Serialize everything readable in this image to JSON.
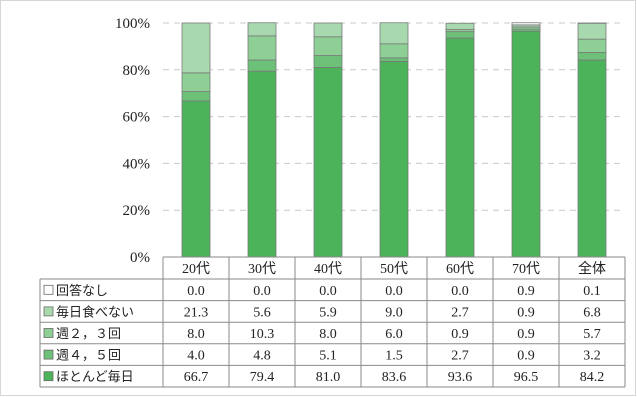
{
  "chart_data": {
    "type": "bar",
    "stacked": true,
    "categories": [
      "20代",
      "30代",
      "40代",
      "50代",
      "60代",
      "70代",
      "全体"
    ],
    "ylim": [
      0,
      100
    ],
    "yticks": [
      "0%",
      "20%",
      "40%",
      "60%",
      "80%",
      "100%"
    ],
    "grid": true,
    "legend": "data-table-left",
    "series": [
      {
        "name": "ほとんど毎日",
        "color": "#4db35a",
        "values": [
          66.7,
          79.4,
          81.0,
          83.6,
          93.6,
          96.5,
          84.2
        ],
        "labels": [
          "66.7",
          "79.4",
          "81.0",
          "83.6",
          "93.6",
          "96.5",
          "84.2"
        ]
      },
      {
        "name": "週４，５回",
        "color": "#6cc077",
        "values": [
          4.0,
          4.8,
          5.1,
          1.5,
          2.7,
          0.9,
          3.2
        ],
        "labels": [
          "4.0",
          "4.8",
          "5.1",
          "1.5",
          "2.7",
          "0.9",
          "3.2"
        ]
      },
      {
        "name": "週２，３回",
        "color": "#8dcf95",
        "values": [
          8.0,
          10.3,
          8.0,
          6.0,
          0.9,
          0.9,
          5.7
        ],
        "labels": [
          "8.0",
          "10.3",
          "8.0",
          "6.0",
          "0.9",
          "0.9",
          "5.7"
        ]
      },
      {
        "name": "毎日食べない",
        "color": "#a8d9ae",
        "values": [
          21.3,
          5.6,
          5.9,
          9.0,
          2.7,
          0.9,
          6.8
        ],
        "labels": [
          "21.3",
          "5.6",
          "5.9",
          "9.0",
          "2.7",
          "0.9",
          "6.8"
        ]
      },
      {
        "name": "回答なし",
        "color": "#ffffff",
        "values": [
          0.0,
          0.0,
          0.0,
          0.0,
          0.0,
          0.9,
          0.1
        ],
        "labels": [
          "0.0",
          "0.0",
          "0.0",
          "0.0",
          "0.0",
          "0.9",
          "0.1"
        ]
      }
    ]
  }
}
